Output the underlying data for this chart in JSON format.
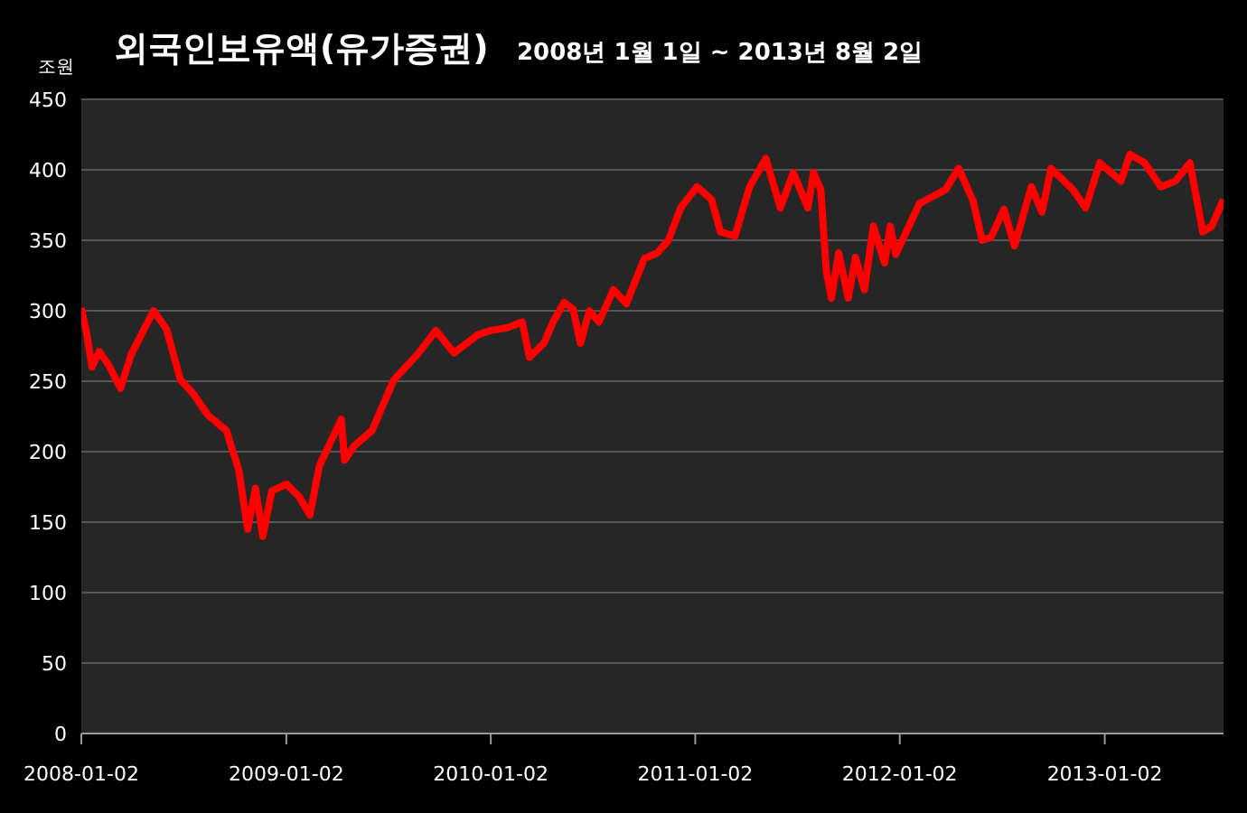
{
  "chart_data": {
    "type": "line",
    "title": "외국인보유액(유가증권)",
    "subtitle": "2008년 1월 1일 ~ 2013년 8월 2일",
    "ylabel": "조원",
    "x": [
      "2008-01-02",
      "2008-01-12",
      "2008-01-21",
      "2008-02-03",
      "2008-02-19",
      "2008-03-12",
      "2008-03-31",
      "2008-05-10",
      "2008-06-02",
      "2008-06-27",
      "2008-07-20",
      "2008-08-15",
      "2008-09-17",
      "2008-10-09",
      "2008-10-25",
      "2008-11-08",
      "2008-11-21",
      "2008-12-07",
      "2009-01-02",
      "2009-01-25",
      "2009-02-13",
      "2009-03-02",
      "2009-04-10",
      "2009-04-16",
      "2009-05-03",
      "2009-06-04",
      "2009-07-13",
      "2009-08-24",
      "2009-09-26",
      "2009-10-28",
      "2009-12-10",
      "2010-01-02",
      "2010-02-01",
      "2010-02-27",
      "2010-03-12",
      "2010-04-07",
      "2010-04-23",
      "2010-05-13",
      "2010-05-29",
      "2010-06-11",
      "2010-06-27",
      "2010-07-14",
      "2010-08-09",
      "2010-09-01",
      "2010-10-03",
      "2010-10-26",
      "2010-11-15",
      "2010-12-07",
      "2011-01-05",
      "2011-01-31",
      "2011-02-16",
      "2011-03-14",
      "2011-04-09",
      "2011-05-08",
      "2011-06-03",
      "2011-06-26",
      "2011-07-22",
      "2011-08-01",
      "2011-08-14",
      "2011-08-24",
      "2011-09-02",
      "2011-09-15",
      "2011-10-02",
      "2011-10-15",
      "2011-10-31",
      "2011-11-16",
      "2011-12-06",
      "2011-12-16",
      "2011-12-26",
      "2012-02-06",
      "2012-03-24",
      "2012-04-16",
      "2012-05-12",
      "2012-05-28",
      "2012-06-13",
      "2012-07-06",
      "2012-07-25",
      "2012-08-24",
      "2012-09-12",
      "2012-09-28",
      "2012-11-06",
      "2012-11-29",
      "2012-12-24",
      "2013-01-31",
      "2013-02-16",
      "2013-03-14",
      "2013-04-12",
      "2013-05-08",
      "2013-06-03",
      "2013-06-26",
      "2013-07-12",
      "2013-08-02"
    ],
    "series": [
      {
        "color": "#ff0000",
        "values": [
          302,
          283,
          260,
          271,
          262,
          245,
          269,
          300,
          287,
          251,
          241,
          226,
          215,
          187,
          145,
          174,
          140,
          172,
          177,
          168,
          155,
          190,
          223,
          194,
          204,
          215,
          251,
          269,
          286,
          270,
          283,
          286,
          288,
          292,
          267,
          277,
          292,
          306,
          301,
          277,
          300,
          292,
          315,
          305,
          337,
          341,
          350,
          373,
          388,
          379,
          356,
          353,
          388,
          408,
          373,
          398,
          373,
          398,
          386,
          328,
          309,
          341,
          309,
          338,
          315,
          360,
          334,
          360,
          340,
          376,
          386,
          401,
          378,
          350,
          352,
          372,
          346,
          388,
          370,
          401,
          386,
          373,
          405,
          392,
          411,
          405,
          388,
          392,
          405,
          356,
          360,
          379
        ]
      }
    ],
    "xlim": [
      "2008-01-02",
      "2013-08-02"
    ],
    "xticks": [
      "2008-01-02",
      "2009-01-02",
      "2010-01-02",
      "2011-01-02",
      "2012-01-02",
      "2013-01-02"
    ],
    "ylim": [
      0,
      450
    ],
    "yticks": [
      0,
      50,
      100,
      150,
      200,
      250,
      300,
      350,
      400,
      450
    ],
    "grid": "y",
    "marker": "none"
  }
}
